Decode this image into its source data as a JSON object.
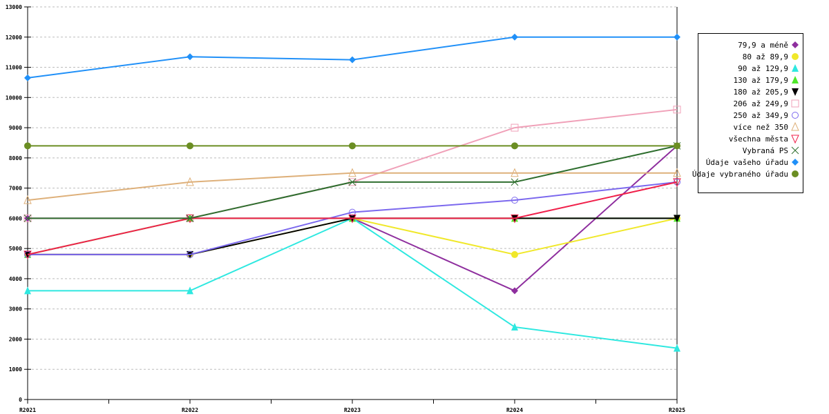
{
  "chart_data": {
    "type": "line",
    "title": "",
    "xlabel": "",
    "ylabel": "",
    "x": [
      "R2021",
      "R2022",
      "R2023",
      "R2024",
      "R2025"
    ],
    "ylim": [
      0,
      13000
    ],
    "yticks": [
      0,
      1000,
      2000,
      3000,
      4000,
      5000,
      6000,
      7000,
      8000,
      9000,
      10000,
      11000,
      12000,
      13000
    ],
    "grid": true,
    "legend_position": "right",
    "series": [
      {
        "name": "79,9 a méně",
        "color": "#8e2e9e",
        "marker": "diamond",
        "values": [
          6000,
          6000,
          6000,
          3600,
          8400
        ]
      },
      {
        "name": "80 až 89,9",
        "color": "#f0e82a",
        "marker": "circle-filled",
        "values": [
          4800,
          4800,
          6000,
          4800,
          6000
        ]
      },
      {
        "name": "90 až 129,9",
        "color": "#2ee8e0",
        "marker": "triangle-filled",
        "values": [
          3600,
          3600,
          6000,
          2400,
          1700
        ]
      },
      {
        "name": "130 až 179,9",
        "color": "#4ee82a",
        "marker": "triangle-filled",
        "values": [
          4800,
          6000,
          6000,
          6000,
          6000
        ]
      },
      {
        "name": "180 až 205,9",
        "color": "#000000",
        "marker": "triangle-down-filled",
        "values": [
          4800,
          4800,
          6000,
          6000,
          6000
        ]
      },
      {
        "name": "206 až 249,9",
        "color": "#f0a0b8",
        "marker": "square-open",
        "values": [
          6000,
          6000,
          7200,
          9000,
          9600
        ]
      },
      {
        "name": "250 až 349,9",
        "color": "#7b68ee",
        "marker": "circle-open",
        "values": [
          4800,
          4800,
          6200,
          6600,
          7200
        ]
      },
      {
        "name": "více než 350",
        "color": "#deb07a",
        "marker": "triangle-open",
        "values": [
          6600,
          7200,
          7500,
          7500,
          7500
        ]
      },
      {
        "name": "všechna města",
        "color": "#f0204a",
        "marker": "triangle-down-open",
        "values": [
          4800,
          6000,
          6000,
          6000,
          7200
        ]
      },
      {
        "name": "Vybraná PS",
        "color": "#2e6e2e",
        "marker": "x",
        "values": [
          6000,
          6000,
          7200,
          7200,
          8400
        ]
      },
      {
        "name": "Údaje vašeho úřadu",
        "color": "#2090f8",
        "marker": "diamond",
        "values": [
          10650,
          11350,
          11250,
          12000,
          12000
        ]
      },
      {
        "name": "Údaje vybraného úřadu",
        "color": "#6b8e23",
        "marker": "circle-filled",
        "values": [
          8400,
          8400,
          8400,
          8400,
          8400
        ]
      }
    ]
  }
}
